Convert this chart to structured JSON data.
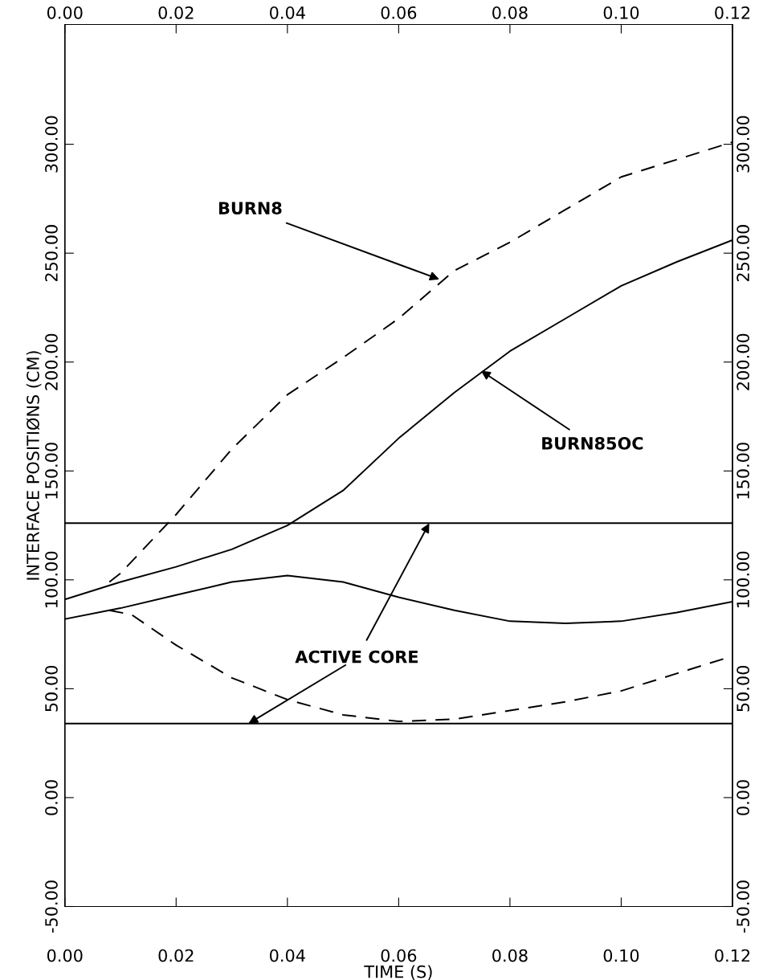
{
  "chart_data": {
    "type": "line",
    "xlabel": "TIME (S)",
    "ylabel": "INTERFACE POSITIØNS (CM)",
    "series": [
      {
        "color": "#000000",
        "line_style": "solid",
        "x": [
          0,
          0.01,
          0.02,
          0.03,
          0.04,
          0.05,
          0.06,
          0.07,
          0.08,
          0.09,
          0.1,
          0.11,
          0.12
        ],
        "values": [
          91,
          99,
          106,
          114,
          125,
          141,
          165,
          186,
          205,
          220,
          235,
          246,
          256
        ]
      },
      {
        "color": "#000000",
        "line_style": "dashed",
        "x": [
          0.008,
          0.01,
          0.02,
          0.03,
          0.04,
          0.05,
          0.06,
          0.07,
          0.08,
          0.09,
          0.1,
          0.12
        ],
        "values": [
          99,
          103,
          130,
          160,
          185,
          202,
          220,
          242,
          255,
          270,
          285,
          301
        ]
      },
      {
        "color": "#000000",
        "line_style": "solid",
        "x": [
          0,
          0.01,
          0.02,
          0.03,
          0.04,
          0.05,
          0.06,
          0.07,
          0.08,
          0.09,
          0.1,
          0.11,
          0.12
        ],
        "values": [
          82,
          87,
          93,
          99,
          102,
          99,
          92,
          86,
          81,
          80,
          81,
          85,
          90
        ]
      },
      {
        "color": "#000000",
        "line_style": "dashed",
        "x": [
          0.008,
          0.012,
          0.02,
          0.03,
          0.04,
          0.05,
          0.06,
          0.07,
          0.08,
          0.09,
          0.1,
          0.11,
          0.12
        ],
        "values": [
          86,
          84,
          70,
          55,
          45,
          38,
          35,
          36,
          40,
          44,
          49,
          57,
          65
        ]
      }
    ],
    "ref_lines": [
      {
        "axis": "y",
        "value": 126,
        "color": "#000000"
      },
      {
        "axis": "y",
        "value": 34,
        "color": "#000000"
      }
    ],
    "annotations": [
      {
        "text": "BURN8",
        "x": 0.0673,
        "y": 238
      },
      {
        "text": "BURN85OC",
        "x": 0.0748,
        "y": 196
      },
      {
        "text": "ACTIVE CORE",
        "x": 0.0655,
        "y": 126
      }
    ],
    "xlim": [
      0,
      0.12
    ],
    "ylim": [
      -50,
      355
    ],
    "xticks": [
      {
        "value": 0,
        "label": "0.00"
      },
      {
        "value": 0.02,
        "label": "0.02"
      },
      {
        "value": 0.04,
        "label": "0.04"
      },
      {
        "value": 0.06,
        "label": "0.06"
      },
      {
        "value": 0.08,
        "label": "0.08"
      },
      {
        "value": 0.1,
        "label": "0.10"
      },
      {
        "value": 0.12,
        "label": "0.12"
      }
    ],
    "x2lim": [
      0,
      0.12
    ],
    "x2ticks": [
      {
        "value": 0,
        "label": "0.00"
      },
      {
        "value": 0.02,
        "label": "0.02"
      },
      {
        "value": 0.04,
        "label": "0.04"
      },
      {
        "value": 0.06,
        "label": "0.06"
      },
      {
        "value": 0.08,
        "label": "0.08"
      },
      {
        "value": 0.1,
        "label": "0.10"
      },
      {
        "value": 0.12,
        "label": "0.12"
      }
    ],
    "yticks": [
      {
        "value": -50,
        "label": "-50.00"
      },
      {
        "value": 0,
        "label": "0.00"
      },
      {
        "value": 50,
        "label": "50.00"
      },
      {
        "value": 100,
        "label": "100.00"
      },
      {
        "value": 150,
        "label": "150.00"
      },
      {
        "value": 200,
        "label": "200.00"
      },
      {
        "value": 250,
        "label": "250.00"
      },
      {
        "value": 300,
        "label": "300.00"
      }
    ],
    "y2lim": [
      -50,
      355
    ],
    "y2ticks": [
      {
        "value": -50,
        "label": "-50.00"
      },
      {
        "value": 0,
        "label": "0.00"
      },
      {
        "value": 50,
        "label": "50.00"
      },
      {
        "value": 100,
        "label": "100.00"
      },
      {
        "value": 150,
        "label": "150.00"
      },
      {
        "value": 200,
        "label": "200.00"
      },
      {
        "value": 250,
        "label": "250.00"
      },
      {
        "value": 300,
        "label": "300.00"
      }
    ],
    "grid": false
  }
}
